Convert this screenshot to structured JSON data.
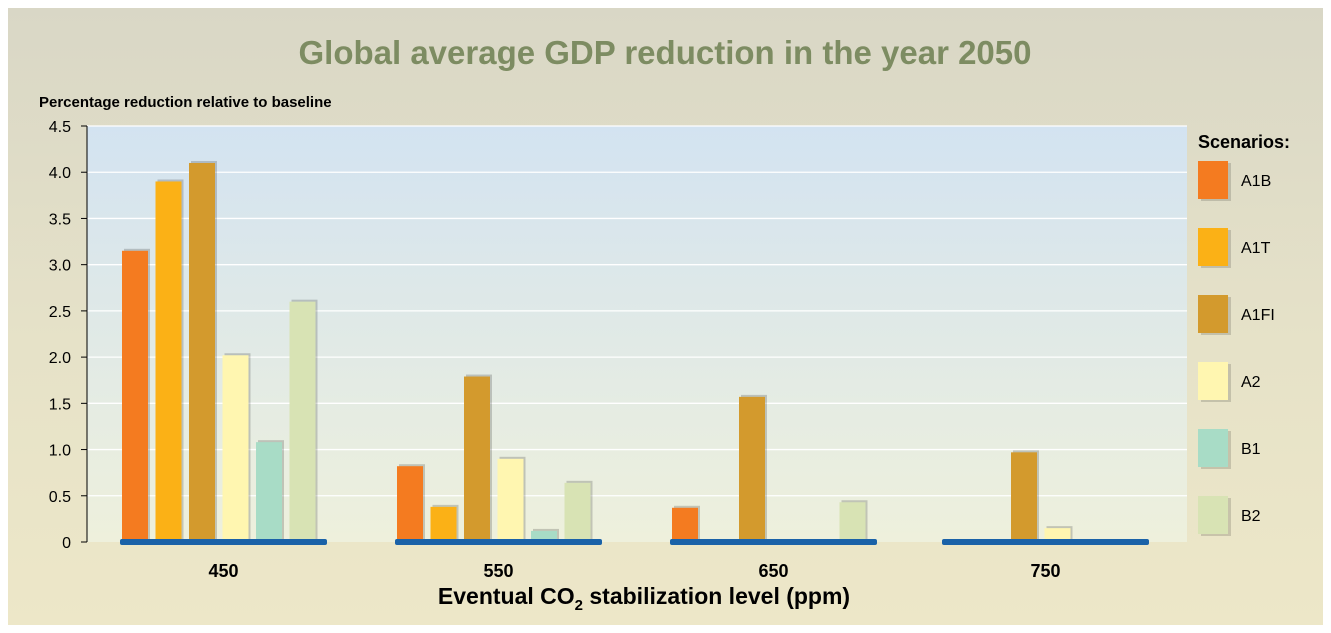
{
  "chart_data": {
    "type": "bar",
    "title": "Global average GDP reduction in the year 2050",
    "ylabel": "Percentage reduction relative to baseline",
    "xlabel_parts": {
      "before": "Eventual CO",
      "sub": "2",
      "after": " stabilization level (ppm)"
    },
    "ylim": [
      0,
      4.5
    ],
    "yticks": [
      "0",
      "0.5",
      "1.0",
      "1.5",
      "2.0",
      "2.5",
      "3.0",
      "3.5",
      "4.0",
      "4.5"
    ],
    "categories": [
      "450",
      "550",
      "650",
      "750"
    ],
    "legend_title": "Scenarios:",
    "legend_position": "right",
    "grid": true,
    "series": [
      {
        "name": "A1B",
        "color": "#f47b20",
        "values": [
          3.15,
          0.82,
          0.37,
          0
        ]
      },
      {
        "name": "A1T",
        "color": "#fbb116",
        "values": [
          3.9,
          0.38,
          0,
          0
        ]
      },
      {
        "name": "A1FI",
        "color": "#d39a2d",
        "values": [
          4.1,
          1.79,
          1.57,
          0.97
        ]
      },
      {
        "name": "A2",
        "color": "#fff6b0",
        "values": [
          2.02,
          0.9,
          0,
          0.15
        ]
      },
      {
        "name": "B1",
        "color": "#a8dcc6",
        "values": [
          1.08,
          0.12,
          0,
          0
        ]
      },
      {
        "name": "B2",
        "color": "#d8e3b4",
        "values": [
          2.6,
          0.64,
          0.43,
          0
        ]
      }
    ]
  }
}
